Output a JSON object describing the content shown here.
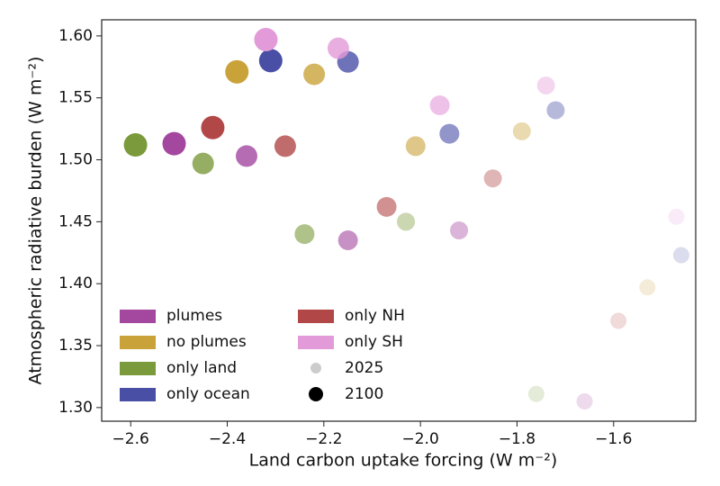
{
  "chart_data": {
    "type": "scatter",
    "xlabel": "Land carbon uptake forcing (W m⁻²)",
    "ylabel": "Atmospheric radiative burden (W m⁻²)",
    "xlim": [
      -2.66,
      -1.43
    ],
    "ylim": [
      1.289,
      1.613
    ],
    "xticks": [
      {
        "value": -2.6,
        "label": "−2.6"
      },
      {
        "value": -2.4,
        "label": "−2.4"
      },
      {
        "value": -2.2,
        "label": "−2.2"
      },
      {
        "value": -2.0,
        "label": "−2.0"
      },
      {
        "value": -1.8,
        "label": "−1.8"
      },
      {
        "value": -1.6,
        "label": "−1.6"
      }
    ],
    "yticks": [
      {
        "value": 1.3,
        "label": "1.30"
      },
      1.35,
      {
        "value": 1.4,
        "label": "1.40"
      },
      1.45,
      {
        "value": 1.5,
        "label": "1.50"
      },
      1.55,
      {
        "value": 1.6,
        "label": "1.60"
      }
    ],
    "legend": "lower left",
    "size_legend": [
      "2025",
      "2100"
    ],
    "series": [
      {
        "name": "plumes",
        "color": "#a3479f",
        "x": [
          -1.66,
          -1.92,
          -2.15,
          -2.36,
          -2.51
        ],
        "values": [
          1.305,
          1.443,
          1.435,
          1.503,
          1.513
        ]
      },
      {
        "name": "no plumes",
        "color": "#c9a23a",
        "x": [
          -1.53,
          -1.79,
          -2.01,
          -2.22,
          -2.38
        ],
        "values": [
          1.397,
          1.523,
          1.511,
          1.569,
          1.571
        ]
      },
      {
        "name": "only land",
        "color": "#7a9a3c",
        "x": [
          -1.76,
          -2.03,
          -2.24,
          -2.45,
          -2.59
        ],
        "values": [
          1.311,
          1.45,
          1.44,
          1.497,
          1.512
        ]
      },
      {
        "name": "only ocean",
        "color": "#4a4fa6",
        "x": [
          -1.46,
          -1.72,
          -1.94,
          -2.15,
          -2.31
        ],
        "values": [
          1.423,
          1.54,
          1.521,
          1.579,
          1.58
        ]
      },
      {
        "name": "only NH",
        "color": "#b24747",
        "x": [
          -1.59,
          -1.85,
          -2.07,
          -2.28,
          -2.43
        ],
        "values": [
          1.37,
          1.485,
          1.462,
          1.511,
          1.526
        ]
      },
      {
        "name": "only SH",
        "color": "#e39ad8",
        "x": [
          -1.47,
          -1.74,
          -1.96,
          -2.17,
          -2.32
        ],
        "values": [
          1.454,
          1.56,
          1.544,
          1.59,
          1.597
        ]
      }
    ]
  }
}
